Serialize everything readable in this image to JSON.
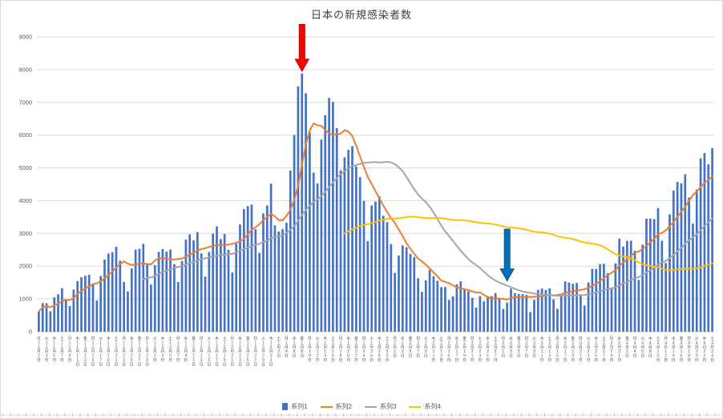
{
  "colors": {
    "background": "#FFFFFF",
    "border": "#D9D9D9",
    "gridline": "#D9D9D9",
    "axis_line": "#C6C6C6",
    "axis_text": "#595959",
    "title_text": "#404040",
    "bottom_ticks": "#BFBFBF"
  },
  "chart_data": {
    "type": "combo",
    "title": "日本の新規感染者数",
    "y_axis": {
      "min": 0,
      "max": 9000,
      "step": 1000
    },
    "x_axis": {
      "label_every_n_days": 2,
      "weekdays": [
        "日",
        "月",
        "火",
        "水",
        "木",
        "金",
        "土"
      ],
      "start_weekday_index": 0,
      "month_suffix": "月",
      "day_suffix": "日",
      "months": [
        {
          "month": 11,
          "days": 30
        },
        {
          "month": 12,
          "days": 31
        },
        {
          "month": 1,
          "days": 31
        },
        {
          "month": 2,
          "days": 28
        },
        {
          "month": 3,
          "days": 31
        },
        {
          "month": 4,
          "days": 24
        }
      ]
    },
    "series": [
      {
        "name": "系列1",
        "type": "bar",
        "color": "#4472C4"
      },
      {
        "name": "系列2",
        "type": "line",
        "color": "#ED7D31",
        "ma_window": 7,
        "partial": true
      },
      {
        "name": "系列3",
        "type": "line",
        "color": "#A5A5A5",
        "ma_window": 28,
        "partial": false
      },
      {
        "name": "系列4",
        "type": "line",
        "color": "#FFC000",
        "ma_window": 80,
        "partial": false
      }
    ],
    "values": [
      614,
      871,
      867,
      621,
      1050,
      1141,
      1331,
      957,
      782,
      1284,
      1543,
      1661,
      1704,
      1738,
      1441,
      953,
      1699,
      2201,
      2386,
      2427,
      2596,
      2168,
      1520,
      1230,
      1931,
      2504,
      2531,
      2684,
      2066,
      1438,
      2030,
      2434,
      2518,
      2442,
      2508,
      2058,
      1515,
      2152,
      2811,
      2972,
      2788,
      3041,
      2387,
      1680,
      2432,
      2994,
      3211,
      2829,
      2982,
      2501,
      1806,
      2688,
      3271,
      3742,
      3832,
      3881,
      3127,
      2403,
      3610,
      3852,
      4520,
      3246,
      3059,
      3127,
      3325,
      4915,
      6004,
      7490,
      7882,
      7278,
      6084,
      4854,
      4527,
      5870,
      6607,
      7133,
      7014,
      6217,
      4925,
      5321,
      5549,
      5663,
      5045,
      4718,
      3990,
      2764,
      3853,
      3971,
      4133,
      3539,
      3346,
      2673,
      1792,
      2324,
      2631,
      2577,
      2372,
      2279,
      1631,
      1216,
      1570,
      1887,
      1693,
      1552,
      1362,
      1364,
      965,
      1077,
      1448,
      1538,
      1301,
      1234,
      1032,
      739,
      1085,
      921,
      1076,
      1083,
      1180,
      999,
      697,
      888,
      1316,
      1173,
      1150,
      1144,
      1121,
      599,
      972,
      1277,
      1316,
      1271,
      1320,
      989,
      695,
      1133,
      1537,
      1498,
      1463,
      1488,
      1121,
      800,
      1504,
      1918,
      1917,
      2064,
      2071,
      1785,
      1348,
      2087,
      2843,
      2597,
      2770,
      2779,
      2472,
      1576,
      2654,
      3449,
      3448,
      3438,
      3773,
      2777,
      2095,
      3581,
      4309,
      4572,
      4532,
      4805,
      4092,
      3299,
      4342,
      5290,
      5452,
      5112,
      5605
    ],
    "annotations": [
      {
        "name": "red-arrow",
        "shape": "down-arrow",
        "fill": "#FF0000",
        "stroke": "#C00000",
        "day_index": 68,
        "from_value": 9380,
        "to_value": 7950
      },
      {
        "name": "blue-arrow",
        "shape": "down-arrow",
        "fill": "#0070C0",
        "stroke": "#1F4E79",
        "day_index": 121,
        "from_value": 3130,
        "to_value": 1550
      }
    ]
  }
}
